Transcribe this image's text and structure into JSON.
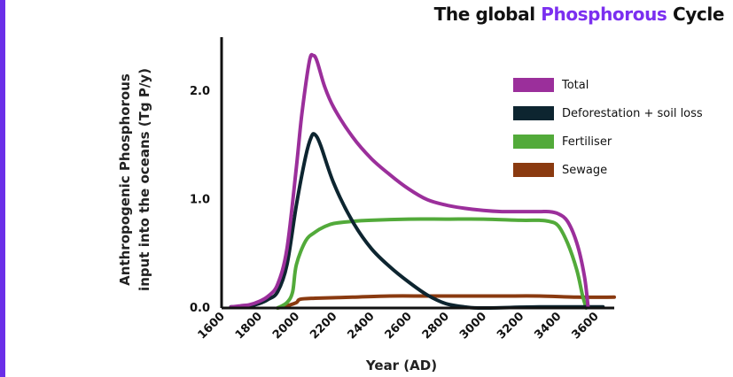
{
  "title": {
    "prefix": "The global",
    "accent": "Phosphorous",
    "suffix": "Cycle"
  },
  "chart_data": {
    "type": "line",
    "xlabel": "Year (AD)",
    "ylabel": [
      "Anthropogenic Phosphorous",
      "input into the oceans (Tg P/y)"
    ],
    "xlim": [
      1600,
      3700
    ],
    "ylim": [
      0,
      2.5
    ],
    "x_ticks": [
      "1600",
      "1800",
      "2000",
      "2200",
      "2400",
      "2600",
      "2800",
      "3000",
      "3200",
      "3400",
      "3600"
    ],
    "y_ticks": [
      "0.0",
      "1.0",
      "2.0"
    ],
    "grid": false,
    "legend_position": "top-right",
    "series": [
      {
        "name": "Total",
        "color": "#9b2f9b",
        "points": [
          [
            1650,
            0.01
          ],
          [
            1700,
            0.02
          ],
          [
            1750,
            0.03
          ],
          [
            1800,
            0.06
          ],
          [
            1850,
            0.11
          ],
          [
            1900,
            0.22
          ],
          [
            1950,
            0.55
          ],
          [
            2000,
            1.3
          ],
          [
            2030,
            1.8
          ],
          [
            2070,
            2.28
          ],
          [
            2090,
            2.33
          ],
          [
            2110,
            2.28
          ],
          [
            2150,
            2.05
          ],
          [
            2200,
            1.85
          ],
          [
            2300,
            1.58
          ],
          [
            2400,
            1.38
          ],
          [
            2500,
            1.23
          ],
          [
            2600,
            1.1
          ],
          [
            2700,
            1.0
          ],
          [
            2800,
            0.95
          ],
          [
            2900,
            0.92
          ],
          [
            3000,
            0.9
          ],
          [
            3100,
            0.89
          ],
          [
            3200,
            0.89
          ],
          [
            3300,
            0.89
          ],
          [
            3350,
            0.89
          ],
          [
            3400,
            0.87
          ],
          [
            3450,
            0.8
          ],
          [
            3500,
            0.6
          ],
          [
            3540,
            0.3
          ],
          [
            3560,
            0.01
          ]
        ]
      },
      {
        "name": "Deforestation + soil loss",
        "color": "#0d2530",
        "points": [
          [
            1650,
            0.01
          ],
          [
            1750,
            0.02
          ],
          [
            1800,
            0.04
          ],
          [
            1850,
            0.08
          ],
          [
            1900,
            0.15
          ],
          [
            1950,
            0.4
          ],
          [
            2000,
            0.95
          ],
          [
            2050,
            1.4
          ],
          [
            2080,
            1.58
          ],
          [
            2100,
            1.6
          ],
          [
            2130,
            1.5
          ],
          [
            2200,
            1.15
          ],
          [
            2300,
            0.8
          ],
          [
            2400,
            0.55
          ],
          [
            2500,
            0.38
          ],
          [
            2600,
            0.24
          ],
          [
            2700,
            0.12
          ],
          [
            2800,
            0.04
          ],
          [
            2900,
            0.01
          ],
          [
            3000,
            0.0
          ],
          [
            3300,
            0.01
          ],
          [
            3600,
            0.01
          ],
          [
            3640,
            0.01
          ]
        ]
      },
      {
        "name": "Fertiliser",
        "color": "#52aa3a",
        "points": [
          [
            1900,
            0.0
          ],
          [
            1950,
            0.05
          ],
          [
            1980,
            0.15
          ],
          [
            2000,
            0.4
          ],
          [
            2050,
            0.62
          ],
          [
            2100,
            0.7
          ],
          [
            2150,
            0.75
          ],
          [
            2200,
            0.78
          ],
          [
            2300,
            0.8
          ],
          [
            2400,
            0.81
          ],
          [
            2600,
            0.82
          ],
          [
            2800,
            0.82
          ],
          [
            3000,
            0.82
          ],
          [
            3200,
            0.81
          ],
          [
            3300,
            0.81
          ],
          [
            3350,
            0.8
          ],
          [
            3400,
            0.76
          ],
          [
            3450,
            0.6
          ],
          [
            3500,
            0.35
          ],
          [
            3530,
            0.12
          ],
          [
            3550,
            0.0
          ]
        ]
      },
      {
        "name": "Sewage",
        "color": "#8a3a10",
        "points": [
          [
            1900,
            0.0
          ],
          [
            1950,
            0.02
          ],
          [
            2000,
            0.05
          ],
          [
            2020,
            0.08
          ],
          [
            2100,
            0.09
          ],
          [
            2300,
            0.1
          ],
          [
            2500,
            0.11
          ],
          [
            2700,
            0.11
          ],
          [
            2900,
            0.11
          ],
          [
            3100,
            0.11
          ],
          [
            3300,
            0.11
          ],
          [
            3500,
            0.1
          ],
          [
            3700,
            0.1
          ]
        ]
      }
    ]
  }
}
